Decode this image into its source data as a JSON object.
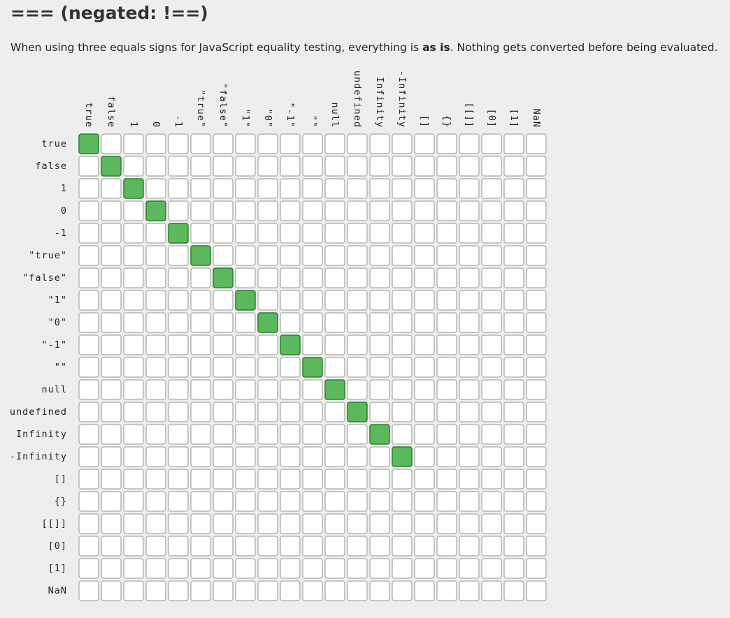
{
  "header": {
    "title": "=== (negated: !==)",
    "intro": [
      "When using three equals signs for JavaScript equality testing, everything is ",
      "as is",
      ". Nothing gets converted before being evaluated."
    ]
  },
  "table": {
    "columns": [
      "true",
      "false",
      "1",
      "0",
      "-1",
      "\"true\"",
      "\"false\"",
      "\"1\"",
      "\"0\"",
      "\"-1\"",
      "\"\"",
      "null",
      "undefined",
      "Infinity",
      "-Infinity",
      "[]",
      "{}",
      "[[]]",
      "[0]",
      "[1]",
      "NaN"
    ],
    "rows": [
      "true",
      "false",
      "1",
      "0",
      "-1",
      "\"true\"",
      "\"false\"",
      "\"1\"",
      "\"0\"",
      "\"-1\"",
      "\"\"",
      "null",
      "undefined",
      "Infinity",
      "-Infinity",
      "[]",
      "{}",
      "[[]]",
      "[0]",
      "[1]",
      "NaN"
    ],
    "cells": [
      [
        1,
        0,
        0,
        0,
        0,
        0,
        0,
        0,
        0,
        0,
        0,
        0,
        0,
        0,
        0,
        0,
        0,
        0,
        0,
        0,
        0
      ],
      [
        0,
        1,
        0,
        0,
        0,
        0,
        0,
        0,
        0,
        0,
        0,
        0,
        0,
        0,
        0,
        0,
        0,
        0,
        0,
        0,
        0
      ],
      [
        0,
        0,
        1,
        0,
        0,
        0,
        0,
        0,
        0,
        0,
        0,
        0,
        0,
        0,
        0,
        0,
        0,
        0,
        0,
        0,
        0
      ],
      [
        0,
        0,
        0,
        1,
        0,
        0,
        0,
        0,
        0,
        0,
        0,
        0,
        0,
        0,
        0,
        0,
        0,
        0,
        0,
        0,
        0
      ],
      [
        0,
        0,
        0,
        0,
        1,
        0,
        0,
        0,
        0,
        0,
        0,
        0,
        0,
        0,
        0,
        0,
        0,
        0,
        0,
        0,
        0
      ],
      [
        0,
        0,
        0,
        0,
        0,
        1,
        0,
        0,
        0,
        0,
        0,
        0,
        0,
        0,
        0,
        0,
        0,
        0,
        0,
        0,
        0
      ],
      [
        0,
        0,
        0,
        0,
        0,
        0,
        1,
        0,
        0,
        0,
        0,
        0,
        0,
        0,
        0,
        0,
        0,
        0,
        0,
        0,
        0
      ],
      [
        0,
        0,
        0,
        0,
        0,
        0,
        0,
        1,
        0,
        0,
        0,
        0,
        0,
        0,
        0,
        0,
        0,
        0,
        0,
        0,
        0
      ],
      [
        0,
        0,
        0,
        0,
        0,
        0,
        0,
        0,
        1,
        0,
        0,
        0,
        0,
        0,
        0,
        0,
        0,
        0,
        0,
        0,
        0
      ],
      [
        0,
        0,
        0,
        0,
        0,
        0,
        0,
        0,
        0,
        1,
        0,
        0,
        0,
        0,
        0,
        0,
        0,
        0,
        0,
        0,
        0
      ],
      [
        0,
        0,
        0,
        0,
        0,
        0,
        0,
        0,
        0,
        0,
        1,
        0,
        0,
        0,
        0,
        0,
        0,
        0,
        0,
        0,
        0
      ],
      [
        0,
        0,
        0,
        0,
        0,
        0,
        0,
        0,
        0,
        0,
        0,
        1,
        0,
        0,
        0,
        0,
        0,
        0,
        0,
        0,
        0
      ],
      [
        0,
        0,
        0,
        0,
        0,
        0,
        0,
        0,
        0,
        0,
        0,
        0,
        1,
        0,
        0,
        0,
        0,
        0,
        0,
        0,
        0
      ],
      [
        0,
        0,
        0,
        0,
        0,
        0,
        0,
        0,
        0,
        0,
        0,
        0,
        0,
        1,
        0,
        0,
        0,
        0,
        0,
        0,
        0
      ],
      [
        0,
        0,
        0,
        0,
        0,
        0,
        0,
        0,
        0,
        0,
        0,
        0,
        0,
        0,
        1,
        0,
        0,
        0,
        0,
        0,
        0
      ],
      [
        0,
        0,
        0,
        0,
        0,
        0,
        0,
        0,
        0,
        0,
        0,
        0,
        0,
        0,
        0,
        0,
        0,
        0,
        0,
        0,
        0
      ],
      [
        0,
        0,
        0,
        0,
        0,
        0,
        0,
        0,
        0,
        0,
        0,
        0,
        0,
        0,
        0,
        0,
        0,
        0,
        0,
        0,
        0
      ],
      [
        0,
        0,
        0,
        0,
        0,
        0,
        0,
        0,
        0,
        0,
        0,
        0,
        0,
        0,
        0,
        0,
        0,
        0,
        0,
        0,
        0
      ],
      [
        0,
        0,
        0,
        0,
        0,
        0,
        0,
        0,
        0,
        0,
        0,
        0,
        0,
        0,
        0,
        0,
        0,
        0,
        0,
        0,
        0
      ],
      [
        0,
        0,
        0,
        0,
        0,
        0,
        0,
        0,
        0,
        0,
        0,
        0,
        0,
        0,
        0,
        0,
        0,
        0,
        0,
        0,
        0
      ],
      [
        0,
        0,
        0,
        0,
        0,
        0,
        0,
        0,
        0,
        0,
        0,
        0,
        0,
        0,
        0,
        0,
        0,
        0,
        0,
        0,
        0
      ]
    ]
  }
}
